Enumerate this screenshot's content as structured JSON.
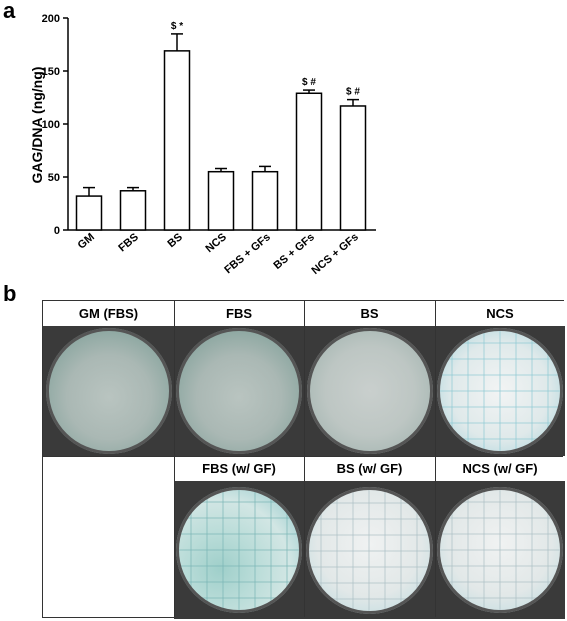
{
  "panel_a_letter": "a",
  "panel_b_letter": "b",
  "chart_data": {
    "type": "bar",
    "ylabel": "GAG/DNA (ng/ng)",
    "ylim": [
      0,
      200
    ],
    "yticks": [
      0,
      50,
      100,
      150,
      200
    ],
    "categories": [
      "GM",
      "FBS",
      "BS",
      "NCS",
      "FBS + GFs",
      "BS + GFs",
      "NCS + GFs"
    ],
    "values": [
      32,
      37,
      169,
      55,
      55,
      129,
      117
    ],
    "errors": [
      8,
      3,
      16,
      3,
      5,
      3,
      6
    ],
    "annotations": [
      "",
      "",
      "$ *",
      "",
      "",
      "$ #",
      "$ #"
    ],
    "bar_color": "#ffffff",
    "grid": false
  },
  "panel_b": {
    "top_row": [
      {
        "label": "GM (FBS)",
        "stain": "weak-teal"
      },
      {
        "label": "FBS",
        "stain": "weak-teal"
      },
      {
        "label": "BS",
        "stain": "faint"
      },
      {
        "label": "NCS",
        "stain": "grid-teal"
      }
    ],
    "bottom_row": [
      {
        "label": "",
        "stain": "empty"
      },
      {
        "label": "FBS (w/ GF)",
        "stain": "grid-strong"
      },
      {
        "label": "BS (w/ GF)",
        "stain": "grid-light"
      },
      {
        "label": "NCS (w/ GF)",
        "stain": "grid-light"
      }
    ]
  }
}
